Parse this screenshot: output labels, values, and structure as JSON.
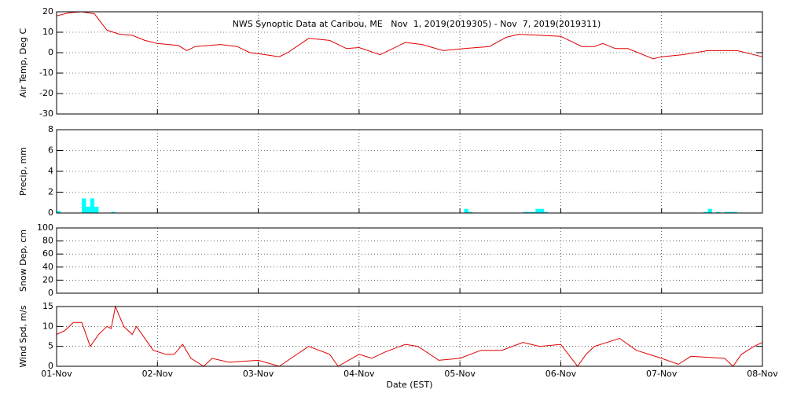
{
  "chart_data": [
    {
      "type": "line",
      "title": "NWS Synoptic Data at Caribou, ME   Nov  1, 2019(2019305) - Nov  7, 2019(2019311)",
      "ylabel": "Air Temp, Deg C",
      "color": "#e00000",
      "x": [
        0,
        3,
        6,
        9,
        12,
        15,
        18,
        21,
        24,
        29,
        31,
        33,
        39,
        43,
        46,
        48,
        53,
        55,
        60,
        65,
        69,
        72,
        77,
        83,
        87,
        92,
        97,
        103,
        107,
        110,
        115,
        120,
        125,
        128,
        130,
        133,
        136,
        142,
        144,
        149,
        155,
        162,
        168
      ],
      "values": [
        18,
        19.5,
        20,
        19,
        11,
        9,
        8.5,
        6,
        4.5,
        3.5,
        1,
        3,
        4,
        3,
        0,
        -0.5,
        -2,
        0,
        7,
        6,
        2,
        2.5,
        -1,
        5,
        4,
        1,
        2,
        3,
        7.5,
        9,
        8.5,
        8,
        3,
        3,
        4.5,
        2,
        2,
        -3,
        -2,
        -1,
        1,
        1,
        -2
      ],
      "xlim": [
        0,
        168
      ],
      "ylim": [
        -30,
        20
      ],
      "yticks": [
        -30,
        -20,
        -10,
        0,
        10,
        20
      ],
      "grid": true
    },
    {
      "type": "bar",
      "ylabel": "Precip, mm",
      "color": "#00ffff",
      "x": [
        0,
        6,
        7,
        8,
        9,
        13,
        97,
        98,
        111,
        112,
        113,
        114,
        115,
        116,
        154,
        155,
        157,
        159,
        160,
        161
      ],
      "values": [
        0.2,
        1.4,
        0.6,
        1.4,
        0.6,
        0.1,
        0.4,
        0.1,
        0.1,
        0.1,
        0.1,
        0.4,
        0.4,
        0.1,
        0.1,
        0.4,
        0.1,
        0.1,
        0.1,
        0.1
      ],
      "xlim": [
        0,
        168
      ],
      "ylim": [
        0,
        8
      ],
      "yticks": [
        0,
        2,
        4,
        6,
        8
      ],
      "grid": true
    },
    {
      "type": "line",
      "ylabel": "Snow Dep, cm",
      "color": "#e00000",
      "x": [],
      "values": [],
      "xlim": [
        0,
        168
      ],
      "ylim": [
        0,
        100
      ],
      "yticks": [
        0,
        20,
        40,
        60,
        80,
        100
      ],
      "grid": true
    },
    {
      "type": "line",
      "ylabel": "Wind Spd, m/s",
      "xlabel": "Date (EST)",
      "color": "#e00000",
      "x": [
        0,
        2,
        4,
        6,
        8,
        10,
        12,
        13,
        14,
        16,
        18,
        19,
        23,
        26,
        28,
        30,
        32,
        35,
        37,
        41,
        48,
        53,
        60,
        65,
        67,
        72,
        75,
        78,
        83,
        86,
        91,
        96,
        101,
        106,
        111,
        115,
        120,
        124,
        126,
        128,
        134,
        138,
        144,
        148,
        151,
        159,
        161,
        163,
        166,
        168
      ],
      "values": [
        8,
        9,
        11,
        11,
        5,
        8,
        10,
        9.5,
        15,
        10,
        8,
        10,
        4,
        3,
        3,
        5.5,
        2,
        0,
        2,
        1,
        1.5,
        0,
        5,
        3,
        0,
        3,
        2,
        3.5,
        5.5,
        5,
        1.5,
        2,
        4,
        4,
        6,
        5,
        5.5,
        0,
        3,
        5,
        7,
        4,
        2,
        0.5,
        2.5,
        2,
        0,
        3,
        5,
        6
      ],
      "xlim": [
        0,
        168
      ],
      "ylim": [
        0,
        15
      ],
      "yticks": [
        0,
        5,
        10,
        15
      ],
      "grid": true,
      "xticks": [
        {
          "value": 0,
          "label": "01-Nov"
        },
        {
          "value": 24,
          "label": "02-Nov"
        },
        {
          "value": 48,
          "label": "03-Nov"
        },
        {
          "value": 72,
          "label": "04-Nov"
        },
        {
          "value": 96,
          "label": "05-Nov"
        },
        {
          "value": 120,
          "label": "06-Nov"
        },
        {
          "value": 144,
          "label": "07-Nov"
        },
        {
          "value": 168,
          "label": "08-Nov"
        }
      ]
    }
  ]
}
